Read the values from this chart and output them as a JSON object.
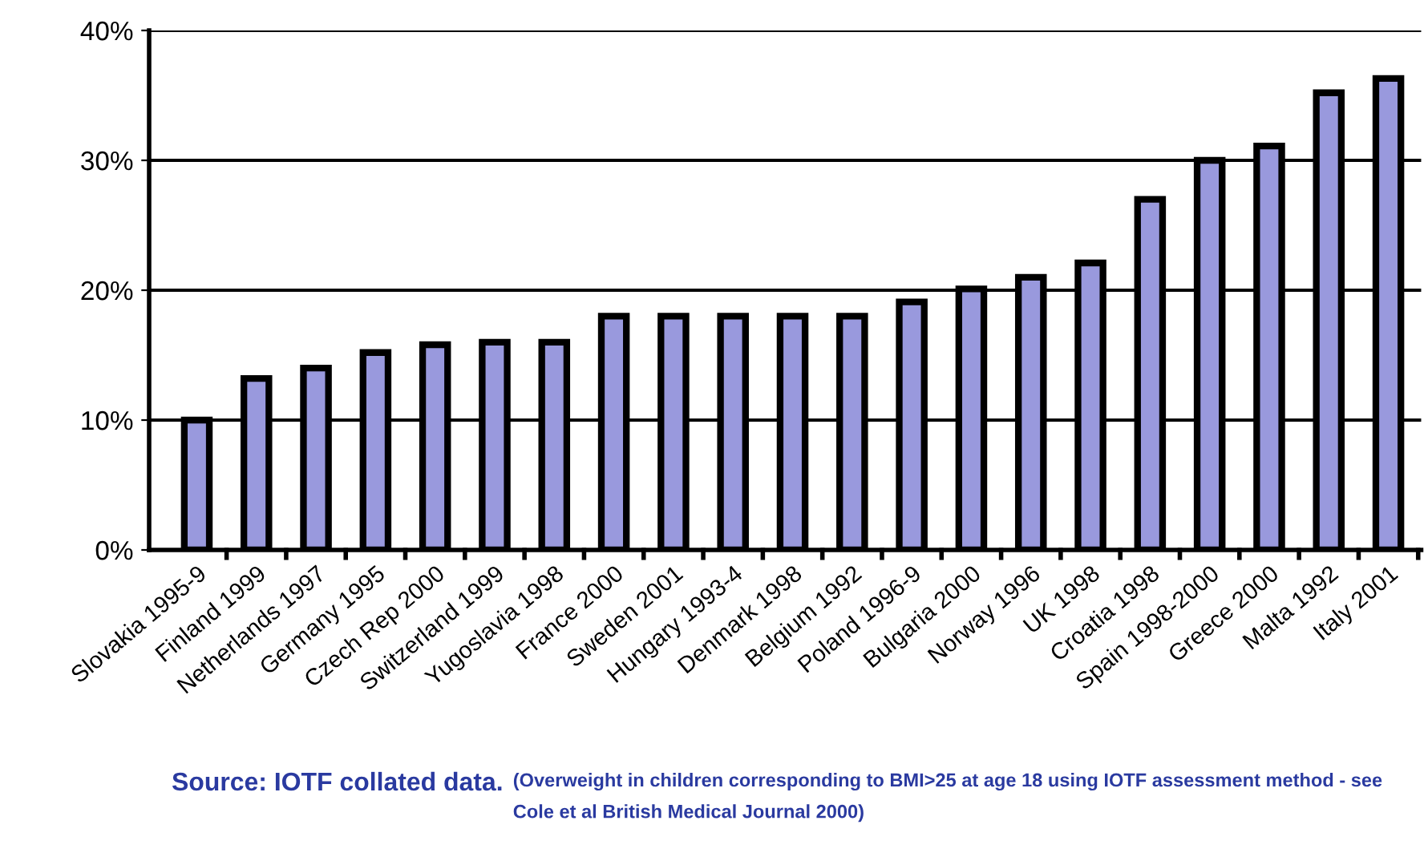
{
  "chart_data": {
    "type": "bar",
    "categories": [
      "Slovakia 1995-9",
      "Finland 1999",
      "Netherlands 1997",
      "Germany 1995",
      "Czech Rep 2000",
      "Switzerland 1999",
      "Yugoslavia 1998",
      "France 2000",
      "Sweden 2001",
      "Hungary 1993-4",
      "Denmark 1998",
      "Belgium 1992",
      "Poland 1996-9",
      "Bulgaria 2000",
      "Norway 1996",
      "UK 1998",
      "Croatia 1998",
      "Spain 1998-2000",
      "Greece 2000",
      "Malta 1992",
      "Italy 2001"
    ],
    "values": [
      10,
      13.2,
      14,
      15.2,
      15.8,
      16,
      16,
      18,
      18,
      18,
      18,
      18,
      19.1,
      20.1,
      21,
      22.1,
      27,
      30,
      31.1,
      35.2,
      36.3
    ],
    "color": "#9999dd",
    "ylim": [
      0,
      40
    ],
    "yticks": [
      {
        "value": 0,
        "label": "0%"
      },
      {
        "value": 10,
        "label": "10%"
      },
      {
        "value": 20,
        "label": "20%"
      },
      {
        "value": 30,
        "label": "30%"
      },
      {
        "value": 40,
        "label": "40%"
      }
    ],
    "grid": "y",
    "annotations": [
      "Source: IOTF collated data.",
      "(Overweight in children corresponding to BMI>25 at age 18 using IOTF assessment method - see Cole et al British Medical Journal 2000)"
    ]
  }
}
